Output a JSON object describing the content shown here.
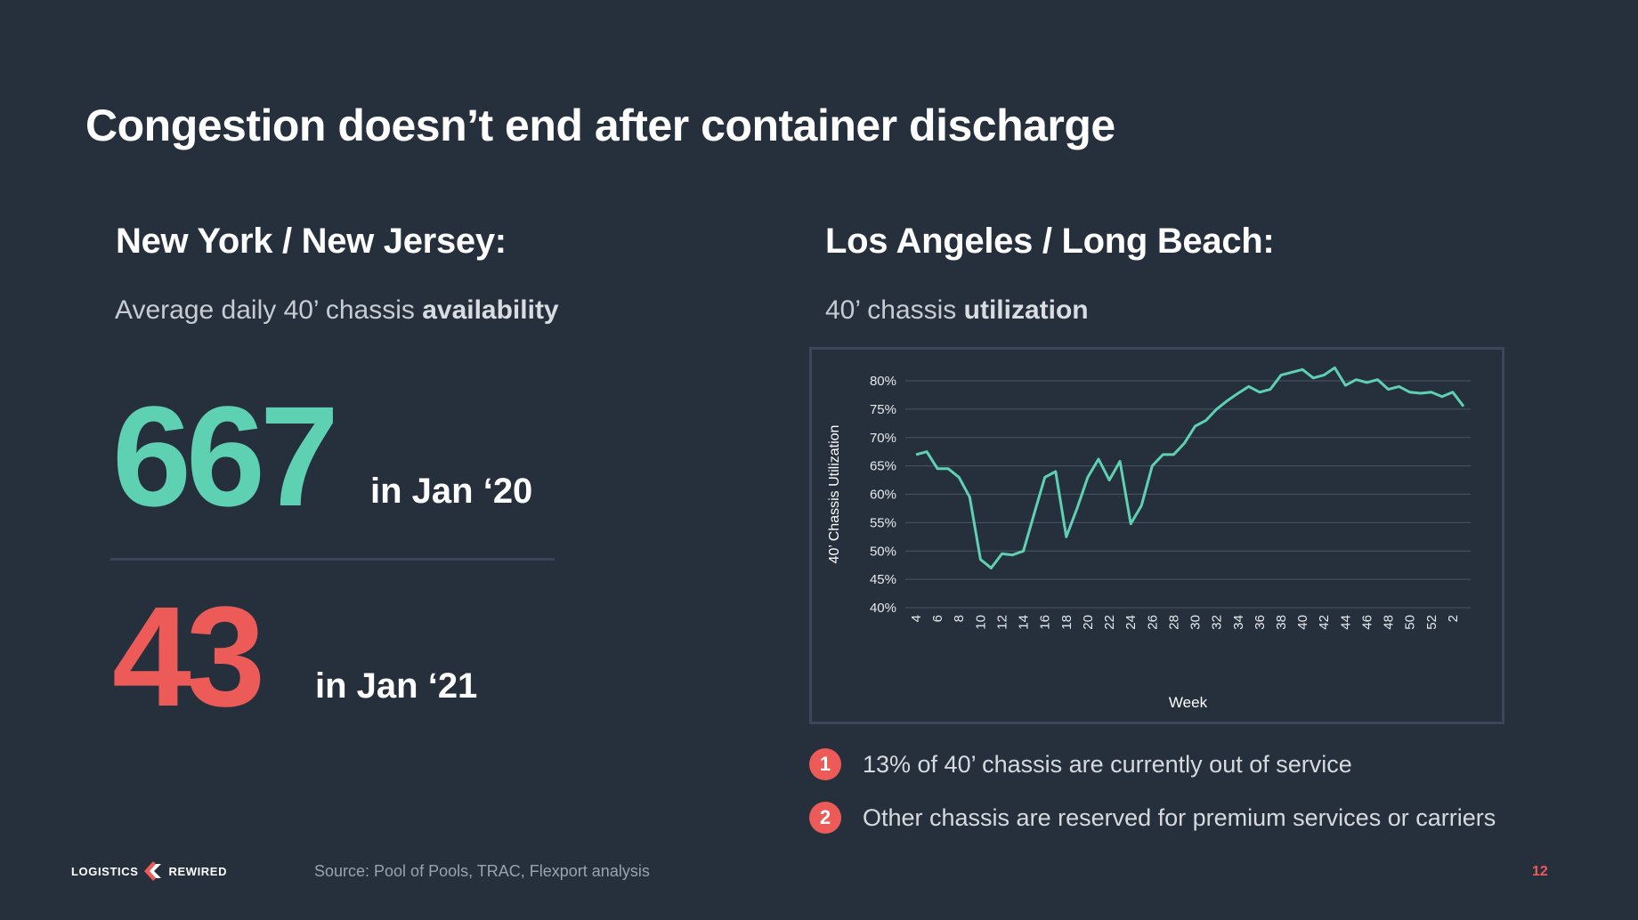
{
  "title": "Congestion doesn’t end after container discharge",
  "left": {
    "heading": "New York / New Jersey:",
    "sub_prefix": "Average daily 40’ chassis ",
    "sub_bold": "availability",
    "stat1": {
      "value": "667",
      "caption": "in Jan ‘20"
    },
    "stat2": {
      "value": "43",
      "caption": "in Jan ‘21"
    }
  },
  "right": {
    "heading": "Los Angeles / Long Beach:",
    "sub_prefix": "40’ chassis ",
    "sub_bold": "utilization"
  },
  "notes": [
    {
      "num": "1",
      "text": "13% of 40’ chassis are currently out of service"
    },
    {
      "num": "2",
      "text": "Other chassis are reserved for premium services or carriers"
    }
  ],
  "footer": {
    "logo_left": "LOGISTICS",
    "logo_right": "REWIRED",
    "source": "Source: Pool of Pools, TRAC, Flexport analysis",
    "page": "12"
  },
  "colors": {
    "background": "#26303d",
    "accent_teal": "#5fd1b3",
    "accent_red": "#ec5b57",
    "gridline": "#4a5564"
  },
  "chart_data": {
    "type": "line",
    "title": "40’ chassis utilization",
    "xlabel": "Week",
    "ylabel": "40’ Chassis Utilization",
    "ylim": [
      40,
      80
    ],
    "y_ticks": [
      "40%",
      "45%",
      "50%",
      "55%",
      "60%",
      "65%",
      "70%",
      "75%",
      "80%"
    ],
    "x_tick_labels": [
      "4",
      "6",
      "8",
      "10",
      "12",
      "14",
      "16",
      "18",
      "20",
      "22",
      "24",
      "26",
      "28",
      "30",
      "32",
      "34",
      "36",
      "38",
      "40",
      "42",
      "44",
      "46",
      "48",
      "50",
      "52",
      "2"
    ],
    "grid": true,
    "series": [
      {
        "name": "40’ chassis utilization",
        "color": "#5fd1b3",
        "x": [
          4,
          5,
          6,
          7,
          8,
          9,
          10,
          11,
          12,
          13,
          14,
          15,
          16,
          17,
          18,
          19,
          20,
          21,
          22,
          23,
          24,
          25,
          26,
          27,
          28,
          29,
          30,
          31,
          32,
          33,
          34,
          35,
          36,
          37,
          38,
          39,
          40,
          41,
          42,
          43,
          44,
          45,
          46,
          47,
          48,
          49,
          50,
          51,
          52,
          53,
          54,
          55
        ],
        "values": [
          67,
          67.5,
          64.5,
          64.5,
          63,
          59.5,
          48.5,
          47,
          49.5,
          49.3,
          50,
          56.5,
          63,
          64,
          52.5,
          57.5,
          63,
          66.2,
          62.5,
          65.8,
          54.8,
          58,
          65,
          67,
          67,
          69,
          72,
          73,
          75,
          76.5,
          77.8,
          79,
          78,
          78.5,
          81,
          81.5,
          82,
          80.5,
          81,
          82.3,
          79.2,
          80.2,
          79.7,
          80.2,
          78.5,
          79,
          78,
          77.8,
          78,
          77.2,
          78,
          75.5
        ]
      }
    ]
  }
}
